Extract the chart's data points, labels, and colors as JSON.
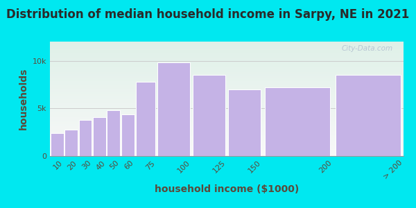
{
  "title": "Distribution of median household income in Sarpy, NE in 2021",
  "xlabel": "household income ($1000)",
  "ylabel": "households",
  "categories": [
    "10",
    "20",
    "30",
    "40",
    "50",
    "60",
    "75",
    "100",
    "125",
    "150",
    "200",
    "> 200"
  ],
  "left_edges": [
    0,
    10,
    20,
    30,
    40,
    50,
    60,
    75,
    100,
    125,
    150,
    200
  ],
  "widths": [
    10,
    10,
    10,
    10,
    10,
    10,
    15,
    25,
    25,
    25,
    50,
    50
  ],
  "values": [
    2400,
    2800,
    3800,
    4100,
    4800,
    4400,
    7800,
    9800,
    8500,
    7000,
    7200,
    8500
  ],
  "bar_color": "#c5b3e6",
  "bar_edge_color": "#ffffff",
  "background_outer": "#00e8f0",
  "background_inner_top": "#dff0e8",
  "background_inner_bottom": "#f8f8f8",
  "yticks": [
    0,
    5000,
    10000
  ],
  "ytick_labels": [
    "0",
    "5k",
    "10k"
  ],
  "ylim": [
    0,
    12000
  ],
  "xlim": [
    0,
    250
  ],
  "xtick_positions": [
    10,
    20,
    30,
    40,
    50,
    60,
    75,
    100,
    125,
    150,
    200,
    250
  ],
  "xtick_labels": [
    "10",
    "20",
    "30",
    "40",
    "50",
    "60",
    "75",
    "100",
    "125",
    "150",
    "200",
    "> 200"
  ],
  "title_fontsize": 12,
  "axis_label_fontsize": 10,
  "tick_fontsize": 8,
  "watermark": "City-Data.com"
}
